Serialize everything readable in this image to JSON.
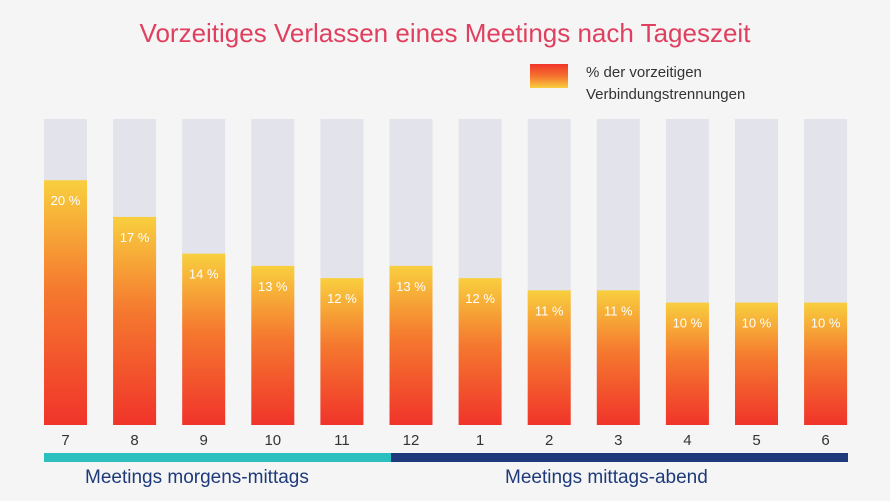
{
  "chart_data": {
    "type": "bar",
    "title": "Vorzeitiges Verlassen eines Meetings nach Tageszeit",
    "legend": {
      "line1": "% der vorzeitigen",
      "line2": "Verbindungstrennungen"
    },
    "categories": [
      "7",
      "8",
      "9",
      "10",
      "11",
      "12",
      "1",
      "2",
      "3",
      "4",
      "5",
      "6"
    ],
    "values": [
      20,
      17,
      14,
      13,
      12,
      13,
      12,
      11,
      11,
      10,
      10,
      10
    ],
    "value_labels": [
      "20 %",
      "17 %",
      "14 %",
      "13 %",
      "12 %",
      "13 %",
      "12 %",
      "11 %",
      "11 %",
      "10 %",
      "10 %",
      "10 %"
    ],
    "ylim": [
      0,
      25
    ],
    "grid": false,
    "groups": [
      {
        "label": "Meetings morgens-mittags",
        "from": 0,
        "to": 5,
        "color": "#2bbfbf"
      },
      {
        "label": "Meetings mittags-abend",
        "from": 5,
        "to": 11,
        "color": "#1e3a7a"
      }
    ],
    "colors": {
      "track": "#e3e3ec",
      "gradient_top": "#f8cf3e",
      "gradient_mid": "#f5792f",
      "gradient_bottom": "#f0342a",
      "title": "#e0405f"
    }
  }
}
